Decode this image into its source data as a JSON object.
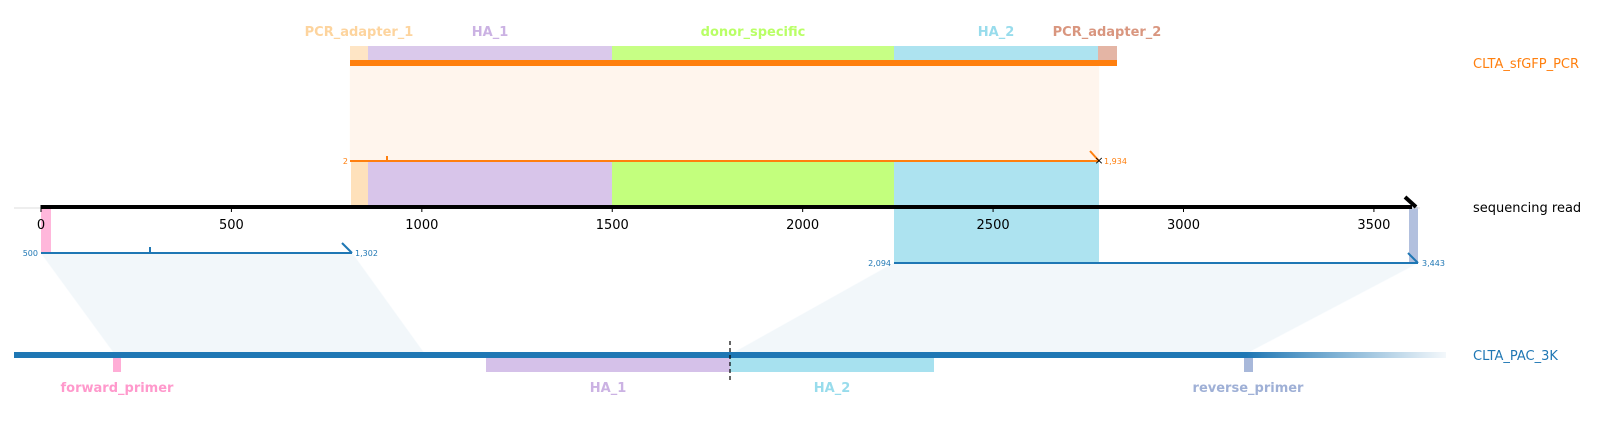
{
  "tracks": {
    "pcr": {
      "name": "CLTA_sfGFP_PCR",
      "color": "#ff7f0e"
    },
    "read": {
      "name": "sequencing read",
      "color": "#000000"
    },
    "genome": {
      "name": "CLTA_PAC_3K",
      "color": "#1f77b4"
    }
  },
  "axis": {
    "ticks": [
      "0",
      "500",
      "1000",
      "1500",
      "2000",
      "2500",
      "3000",
      "3500"
    ]
  },
  "pcr_features": [
    {
      "label": "PCR_adapter_1",
      "color": "#fdd49e"
    },
    {
      "label": "HA_1",
      "color": "#cbb2e3"
    },
    {
      "label": "donor_specific",
      "color": "#b9ff66"
    },
    {
      "label": "HA_2",
      "color": "#98dcec"
    },
    {
      "label": "PCR_adapter_2",
      "color": "#d9967f"
    }
  ],
  "genome_features": [
    {
      "label": "forward_primer",
      "color": "#ff99cc"
    },
    {
      "label": "HA_1",
      "color": "#cbb2e3"
    },
    {
      "label": "HA_2",
      "color": "#98dcec"
    },
    {
      "label": "reverse_primer",
      "color": "#9fb0d6"
    }
  ],
  "alignments": {
    "pcr": {
      "start_label": "2",
      "end_label": "1,934"
    },
    "genome_left": {
      "start_label": "500",
      "end_label": "1,302"
    },
    "genome_right": {
      "start_label": "2,094",
      "end_label": "3,443"
    }
  }
}
